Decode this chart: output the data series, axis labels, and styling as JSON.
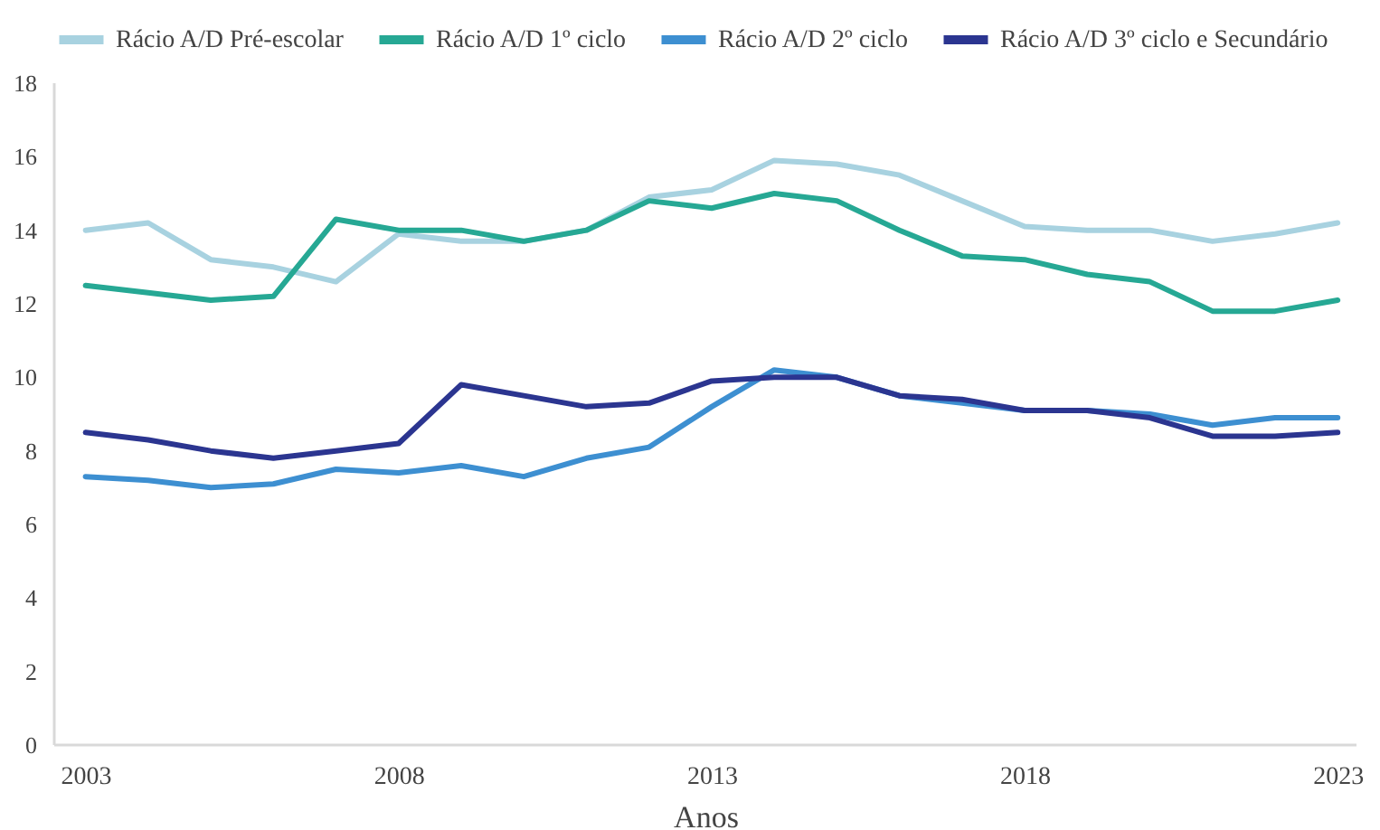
{
  "chart_data": {
    "type": "line",
    "xlabel": "Anos",
    "x": [
      2003,
      2004,
      2005,
      2006,
      2007,
      2008,
      2009,
      2010,
      2011,
      2012,
      2013,
      2014,
      2015,
      2016,
      2017,
      2018,
      2019,
      2020,
      2021,
      2022,
      2023
    ],
    "xlim": [
      2002.5,
      2023.3
    ],
    "xticks": [
      2003,
      2008,
      2013,
      2018,
      2023
    ],
    "ylim": [
      0,
      18
    ],
    "yticks": [
      0,
      2,
      4,
      6,
      8,
      10,
      12,
      14,
      16,
      18
    ],
    "grid": false,
    "legend": "top",
    "marker": "none",
    "line_style": "solid",
    "series": [
      {
        "name": "Rácio A/D Pré-escolar",
        "color": "#a8d2e0",
        "values": [
          14.0,
          14.2,
          13.2,
          13.0,
          12.6,
          13.9,
          13.7,
          13.7,
          14.0,
          14.9,
          15.1,
          15.9,
          15.8,
          15.5,
          14.8,
          14.1,
          14.0,
          14.0,
          13.7,
          13.9,
          14.2
        ]
      },
      {
        "name": "Rácio A/D 1º ciclo",
        "color": "#26a894",
        "values": [
          12.5,
          12.3,
          12.1,
          12.2,
          14.3,
          14.0,
          14.0,
          13.7,
          14.0,
          14.8,
          14.6,
          15.0,
          14.8,
          14.0,
          13.3,
          13.2,
          12.8,
          12.6,
          11.8,
          11.8,
          12.1
        ]
      },
      {
        "name": "Rácio A/D 2º ciclo",
        "color": "#3d8fd1",
        "values": [
          7.3,
          7.2,
          7.0,
          7.1,
          7.5,
          7.4,
          7.6,
          7.3,
          7.8,
          8.1,
          9.2,
          10.2,
          10.0,
          9.5,
          9.3,
          9.1,
          9.1,
          9.0,
          8.7,
          8.9,
          8.9
        ]
      },
      {
        "name": "Rácio A/D 3º ciclo e Secundário",
        "color": "#2b3590",
        "values": [
          8.5,
          8.3,
          8.0,
          7.8,
          8.0,
          8.2,
          9.8,
          9.5,
          9.2,
          9.3,
          9.9,
          10.0,
          10.0,
          9.5,
          9.4,
          9.1,
          9.1,
          8.9,
          8.4,
          8.4,
          8.5
        ]
      }
    ]
  }
}
